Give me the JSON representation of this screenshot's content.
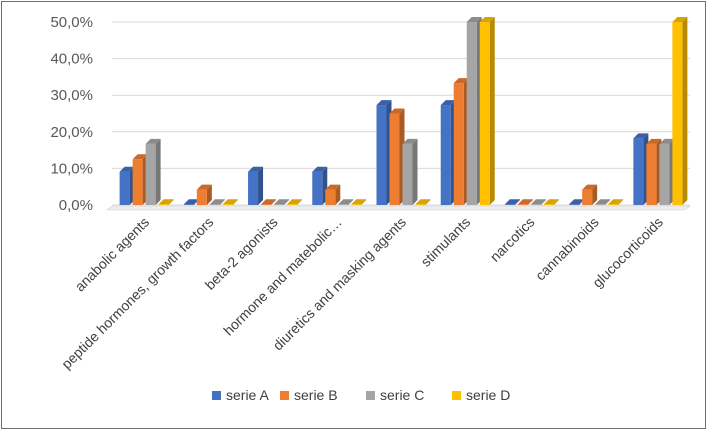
{
  "chart_data": {
    "type": "bar",
    "style": "3d-clustered-column",
    "categories": [
      "anabolic agents",
      "peptide hormones, growth factors",
      "beta-2 agonists",
      "hormone and matebolic…",
      "diuretics and masking agents",
      "stimulants",
      "narcotics",
      "cannabinoids",
      "glucocorticoids"
    ],
    "series": [
      {
        "name": "serie A",
        "color": "#4472c4",
        "values": [
          9.1,
          0,
          9.1,
          9.1,
          27.3,
          27.3,
          0,
          0,
          18.2
        ]
      },
      {
        "name": "serie B",
        "color": "#ed7d31",
        "values": [
          12.5,
          4.2,
          0,
          4.2,
          25.0,
          33.3,
          0,
          4.2,
          16.7
        ]
      },
      {
        "name": "serie C",
        "color": "#a5a5a5",
        "values": [
          16.7,
          0,
          0,
          0,
          16.7,
          50.0,
          0,
          0,
          16.7
        ]
      },
      {
        "name": "serie D",
        "color": "#ffc000",
        "values": [
          0,
          0,
          0,
          0,
          0,
          50.0,
          0,
          0,
          50.0
        ]
      }
    ],
    "yticks": [
      "0,0%",
      "10,0%",
      "20,0%",
      "30,0%",
      "40,0%",
      "50,0%"
    ],
    "ylim": [
      0,
      50
    ],
    "grid": true,
    "legend_position": "bottom"
  }
}
